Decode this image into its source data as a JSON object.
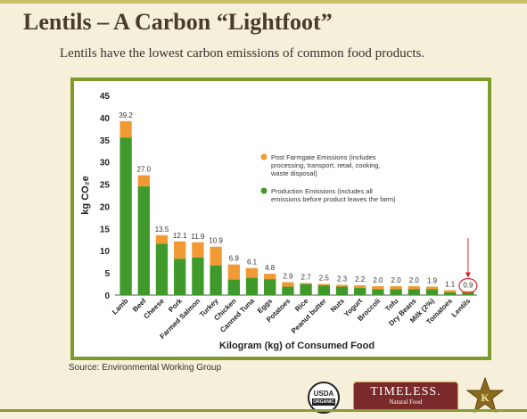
{
  "slide": {
    "title": "Lentils – A Carbon “Lightfoot”",
    "subtitle": "Lentils have the lowest carbon emissions of common food products.",
    "source": "Source: Environmental Working Group"
  },
  "logos": {
    "usda_line1": "USDA",
    "usda_line2": "ORGANIC",
    "brand_name": "TIMELESS.",
    "brand_tagline": "Natural Food",
    "star_letter": "K"
  },
  "colors": {
    "production": "#3f9a2b",
    "post_farmgate": "#f19a33",
    "frame": "#7d9b2d",
    "highlight": "#d8232a"
  },
  "chart_data": {
    "type": "bar",
    "stacked": true,
    "categories": [
      "Lamb",
      "Beef",
      "Cheese",
      "Pork",
      "Farmed Salmon",
      "Turkey",
      "Chicken",
      "Canned Tuna",
      "Eggs",
      "Potatoes",
      "Rice",
      "Peanut butter",
      "Nuts",
      "Yogurt",
      "Broccoli",
      "Tofu",
      "Dry Beans",
      "Milk (2%)",
      "Tomatoes",
      "Lentils"
    ],
    "totals": [
      39.2,
      27.0,
      13.5,
      12.1,
      11.9,
      10.9,
      6.9,
      6.1,
      4.8,
      2.9,
      2.7,
      2.5,
      2.3,
      2.2,
      2.0,
      2.0,
      2.0,
      1.9,
      1.1,
      0.9
    ],
    "total_labels": [
      "39.2",
      "27.0",
      "13.5",
      "12.1",
      "11.9",
      "10.9",
      "6.9",
      "6.1",
      "4.8",
      "2.9",
      "2.7",
      "2.5",
      "2.3",
      "2.2",
      "2.0",
      "2.0",
      "2.0",
      "1.9",
      "1.1",
      "0.9"
    ],
    "series": [
      {
        "name": "Production Emissions (includes all emissions before product leaves the farm)",
        "values": [
          35.5,
          24.5,
          11.6,
          8.2,
          8.5,
          6.7,
          3.5,
          3.9,
          3.6,
          1.9,
          2.5,
          2.2,
          1.9,
          1.6,
          1.3,
          1.3,
          1.3,
          1.3,
          0.6,
          0.6
        ]
      },
      {
        "name": "Post Farmgate Emissions (includes processing, transport, retail, cooking, waste disposal)",
        "values": [
          3.7,
          2.5,
          1.9,
          3.9,
          3.4,
          4.2,
          3.4,
          2.2,
          1.2,
          1.0,
          0.2,
          0.3,
          0.4,
          0.6,
          0.7,
          0.7,
          0.7,
          0.6,
          0.5,
          0.3
        ]
      }
    ],
    "xlabel": "Kilogram (kg) of Consumed Food",
    "ylabel": "kg CO₂e",
    "ylim": [
      0,
      45
    ],
    "yticks": [
      0,
      5,
      10,
      15,
      20,
      25,
      30,
      35,
      40,
      45
    ],
    "legend": "center-right",
    "grid": false,
    "highlighted_category": "Lentils"
  }
}
